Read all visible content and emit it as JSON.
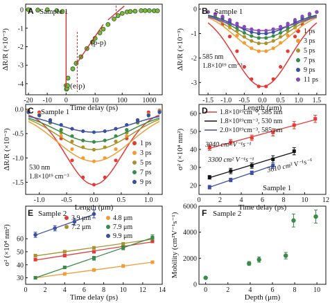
{
  "chart_data": [
    {
      "panel": "A",
      "type": "line",
      "sample": "Sample 1",
      "xlabel": "Time delay (ps)",
      "ylabel": "ΔR/R (×10⁻³)",
      "xticks": [
        "-20",
        "-10",
        "0",
        "10",
        "100",
        "1000"
      ],
      "yticks": [
        "0",
        "-1",
        "-2",
        "-3",
        "-4"
      ],
      "xlim": [
        -20,
        3000
      ],
      "x_scale": "linear below 1 ps, log above 1 ps",
      "ylim": [
        -4.6,
        0.3
      ],
      "annotations": [
        "(e-p)",
        "(p-p)"
      ],
      "series": [
        {
          "x": [
            -20,
            -15,
            -10,
            -5,
            -2,
            0,
            0.2,
            0.5,
            0.8,
            1,
            1.5,
            2,
            3,
            5,
            8,
            10,
            15,
            20,
            30,
            50,
            70,
            100,
            150,
            200,
            300,
            500,
            700,
            1000,
            1500,
            2000
          ],
          "y": [
            0.0,
            -0.02,
            0.0,
            -0.05,
            -0.1,
            -4.1,
            -4.3,
            -4.25,
            -4.1,
            -3.7,
            -3.2,
            -2.9,
            -2.55,
            -2.1,
            -1.75,
            -1.55,
            -1.25,
            -1.05,
            -0.8,
            -0.5,
            -0.32,
            -0.2,
            -0.12,
            -0.1,
            -0.08,
            -0.05,
            -0.05,
            -0.05,
            -0.06,
            -0.06
          ]
        }
      ]
    },
    {
      "panel": "B",
      "type": "scatter",
      "sample": "Sample 1",
      "xlabel": "Length (μm)",
      "ylabel": "ΔR/R (×10⁻³)",
      "annotations": [
        "585 nm",
        "1.8×10¹⁹ cm⁻³"
      ],
      "xticks": [
        "-1.5",
        "-1.0",
        "-0.5",
        "0.0",
        "0.5",
        "1.0",
        "1.5"
      ],
      "yticks": [
        "0",
        "-1",
        "-2",
        "-3"
      ],
      "xlim": [
        -1.75,
        1.75
      ],
      "ylim": [
        -3.5,
        0.2
      ],
      "x": [
        -1.5,
        -1.3,
        -1.1,
        -0.9,
        -0.7,
        -0.5,
        -0.3,
        -0.1,
        0.1,
        0.3,
        0.5,
        0.7,
        0.9,
        1.1,
        1.3,
        1.5
      ],
      "series": [
        {
          "name": "1 ps",
          "color": "#e53935",
          "values": [
            -0.12,
            -0.3,
            -0.62,
            -1.12,
            -1.72,
            -2.36,
            -2.86,
            -3.16,
            -3.16,
            -2.86,
            -2.36,
            -1.72,
            -1.12,
            -0.62,
            -0.3,
            -0.12
          ]
        },
        {
          "name": "3 ps",
          "color": "#f39c34",
          "values": [
            -0.12,
            -0.26,
            -0.48,
            -0.76,
            -1.08,
            -1.38,
            -1.6,
            -1.72,
            -1.72,
            -1.6,
            -1.38,
            -1.08,
            -0.76,
            -0.48,
            -0.26,
            -0.12
          ]
        },
        {
          "name": "5 ps",
          "color": "#a8932f",
          "values": [
            -0.12,
            -0.24,
            -0.42,
            -0.64,
            -0.9,
            -1.13,
            -1.3,
            -1.4,
            -1.4,
            -1.3,
            -1.13,
            -0.9,
            -0.64,
            -0.42,
            -0.24,
            -0.12
          ]
        },
        {
          "name": "7 ps",
          "color": "#3a8a4a",
          "values": [
            -0.12,
            -0.22,
            -0.38,
            -0.56,
            -0.78,
            -0.97,
            -1.1,
            -1.18,
            -1.18,
            -1.1,
            -0.97,
            -0.78,
            -0.56,
            -0.38,
            -0.22,
            -0.12
          ]
        },
        {
          "name": "9 ps",
          "color": "#3b4fa3",
          "values": [
            -0.12,
            -0.2,
            -0.33,
            -0.49,
            -0.67,
            -0.82,
            -0.94,
            -1.0,
            -1.0,
            -0.94,
            -0.82,
            -0.67,
            -0.49,
            -0.33,
            -0.2,
            -0.12
          ]
        },
        {
          "name": "11 ps",
          "color": "#8a4bb8",
          "values": [
            -0.12,
            -0.19,
            -0.3,
            -0.44,
            -0.59,
            -0.72,
            -0.82,
            -0.88,
            -0.88,
            -0.82,
            -0.72,
            -0.59,
            -0.44,
            -0.3,
            -0.19,
            -0.12
          ]
        }
      ]
    },
    {
      "panel": "C",
      "type": "scatter",
      "sample": "Sample 1",
      "xlabel": "Length (μm)",
      "ylabel": "ΔR/R (×10⁻³)",
      "annotations": [
        "530 nm",
        "1.8×10¹⁹ cm⁻³"
      ],
      "xticks": [
        "-1.0",
        "-0.5",
        "0.0",
        "0.5",
        "1.0"
      ],
      "yticks": [
        "0.0",
        "-0.5",
        "-1.0",
        "-1.5"
      ],
      "xlim": [
        -1.25,
        1.25
      ],
      "ylim": [
        -1.75,
        0.1
      ],
      "x": [
        -1.2,
        -1.0,
        -0.8,
        -0.6,
        -0.4,
        -0.2,
        0.0,
        0.2,
        0.4,
        0.6,
        0.8,
        1.0,
        1.2
      ],
      "series": [
        {
          "name": "1 ps",
          "color": "#e53935",
          "values": [
            -0.02,
            -0.06,
            -0.22,
            -0.6,
            -1.05,
            -1.4,
            -1.55,
            -1.4,
            -1.05,
            -0.6,
            -0.22,
            -0.06,
            -0.02
          ]
        },
        {
          "name": "3 ps",
          "color": "#f39c34",
          "values": [
            -0.03,
            -0.1,
            -0.27,
            -0.55,
            -0.82,
            -1.0,
            -1.07,
            -1.0,
            -0.82,
            -0.55,
            -0.27,
            -0.1,
            -0.03
          ]
        },
        {
          "name": "5 ps",
          "color": "#a8932f",
          "values": [
            -0.04,
            -0.12,
            -0.28,
            -0.48,
            -0.66,
            -0.78,
            -0.83,
            -0.78,
            -0.66,
            -0.48,
            -0.28,
            -0.12,
            -0.04
          ]
        },
        {
          "name": "7 ps",
          "color": "#3a8a4a",
          "values": [
            -0.05,
            -0.13,
            -0.26,
            -0.42,
            -0.55,
            -0.64,
            -0.67,
            -0.64,
            -0.55,
            -0.42,
            -0.26,
            -0.13,
            -0.05
          ]
        },
        {
          "name": "9 ps",
          "color": "#3b4fa3",
          "values": [
            -0.06,
            -0.12,
            -0.22,
            -0.32,
            -0.4,
            -0.45,
            -0.47,
            -0.45,
            -0.4,
            -0.32,
            -0.22,
            -0.12,
            -0.06
          ]
        }
      ]
    },
    {
      "panel": "D",
      "type": "scatter",
      "sample": "Sample 1",
      "xlabel": "Time delay (ps)",
      "ylabel": "σ² (×10⁴ nm²)",
      "xticks": [
        "0",
        "2",
        "4",
        "6",
        "8",
        "10",
        "12"
      ],
      "yticks": [
        "20",
        "30",
        "40",
        "50",
        "60"
      ],
      "xlim": [
        0,
        12
      ],
      "ylim": [
        15,
        65
      ],
      "series": [
        {
          "name": "1.8×10¹⁹cm⁻³, 585 nm",
          "color": "#e53935",
          "annotation": "3040 cm² V⁻¹s⁻¹",
          "x": [
            1,
            3,
            5,
            7,
            9,
            11
          ],
          "values": [
            41,
            44,
            46.5,
            49.5,
            53.5,
            57
          ],
          "errors": [
            1.5,
            1.5,
            1.5,
            2,
            2,
            2
          ]
        },
        {
          "name": "1.8×10¹⁹cm⁻³, 530 nm",
          "color": "#111111",
          "annotation": "3300 cm² V⁻¹s⁻¹",
          "x": [
            1,
            3,
            5,
            7,
            9
          ],
          "values": [
            24.5,
            28,
            31,
            34.5,
            39
          ],
          "errors": [
            1,
            1.5,
            1.5,
            2,
            2
          ]
        },
        {
          "name": "2.0×10¹⁹cm⁻³, 585 nm",
          "color": "#3b4fa3",
          "annotation": "3610 cm² V⁻¹s⁻¹",
          "x": [
            1,
            3,
            5,
            7
          ],
          "values": [
            19,
            23,
            27,
            31
          ],
          "errors": [
            1,
            1,
            1,
            1.5
          ]
        }
      ]
    },
    {
      "panel": "E",
      "type": "scatter",
      "sample": "Sample 2",
      "xlabel": "Time delay (ps)",
      "ylabel": "σ² (×10⁴ nm²)",
      "xticks": [
        "0",
        "2",
        "4",
        "6",
        "8",
        "10",
        "12",
        "14"
      ],
      "yticks": [
        "30",
        "40",
        "50",
        "60"
      ],
      "xlim": [
        0,
        14
      ],
      "ylim": [
        25,
        85
      ],
      "series": [
        {
          "name": "3.9 μm",
          "color": "#e53935",
          "x": [
            1,
            4,
            7,
            10,
            13
          ],
          "values": [
            44,
            47,
            50,
            54,
            58
          ],
          "errors": [
            1,
            1,
            1,
            1,
            1
          ]
        },
        {
          "name": "4.8 μm",
          "color": "#f39c34",
          "x": [
            1,
            4,
            7,
            10,
            13
          ],
          "values": [
            30,
            33,
            36,
            39,
            42
          ],
          "errors": [
            1,
            1,
            1,
            1,
            1
          ]
        },
        {
          "name": "7.2 μm",
          "color": "#a8932f",
          "x": [
            1,
            4,
            7,
            10,
            13
          ],
          "values": [
            47,
            50,
            53,
            56,
            60
          ],
          "errors": [
            1,
            1,
            1,
            1,
            1
          ]
        },
        {
          "name": "7.9 μm",
          "color": "#3a8a4a",
          "x": [
            1,
            4,
            7,
            10,
            13
          ],
          "values": [
            30,
            38,
            45,
            53,
            61
          ],
          "errors": [
            1,
            1,
            1.5,
            1.5,
            2
          ]
        },
        {
          "name": "9.9 μm",
          "color": "#3b4fa3",
          "x": [
            1,
            3,
            5,
            7
          ],
          "values": [
            63,
            68,
            73,
            79
          ],
          "errors": [
            2,
            2,
            2.5,
            3
          ]
        }
      ]
    },
    {
      "panel": "F",
      "type": "scatter",
      "sample": "Sample 2",
      "xlabel": "Depth (μm)",
      "ylabel": "Mobility (cm²V⁻¹s⁻¹)",
      "xticks": [
        "0",
        "2",
        "4",
        "6",
        "8",
        "10"
      ],
      "yticks": [
        "0",
        "2000",
        "4000",
        "6000"
      ],
      "xlim": [
        -0.6,
        10.8
      ],
      "ylim": [
        0,
        6000
      ],
      "series": [
        {
          "color": "#3a8a4a",
          "x": [
            0,
            3.9,
            4.8,
            7.2,
            7.9,
            9.9
          ],
          "values": [
            500,
            1600,
            1900,
            2200,
            4900,
            5200
          ],
          "errors": [
            0,
            150,
            200,
            250,
            500,
            500
          ]
        }
      ]
    }
  ]
}
